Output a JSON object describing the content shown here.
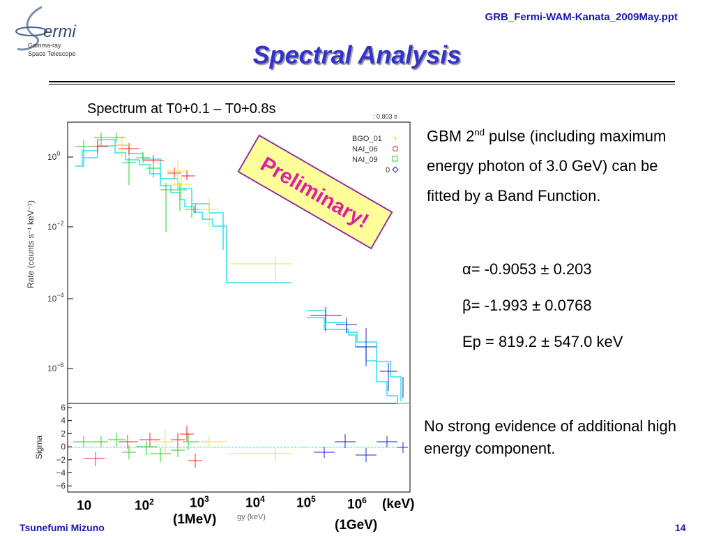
{
  "header": {
    "file": "GRB_Fermi-WAM-Kanata_2009May.ppt",
    "title": "Spectral Analysis",
    "logo": {
      "name": "ermi",
      "line1": "Gamma-ray",
      "line2": "Space Telescope"
    }
  },
  "plot": {
    "caption": "Spectrum at T0+0.1 – T0+0.8s",
    "corner": ": 0.803 s",
    "ylabel": "Rate (counts s⁻¹ keV⁻¹)",
    "yticks": [
      {
        "base": "10",
        "exp": "0"
      },
      {
        "base": "10",
        "exp": "−2"
      },
      {
        "base": "10",
        "exp": "−4"
      },
      {
        "base": "10",
        "exp": "−6"
      }
    ],
    "legend": [
      "BGO_01",
      "NAI_06",
      "NAI_09",
      "0"
    ],
    "sigma_label": "Sigma",
    "sigma_ticks": [
      "6",
      "4",
      "2",
      "0",
      "−2",
      "−4",
      "−6"
    ],
    "xaxis_hidden": "gy (keV)",
    "stamp": "Preliminary!",
    "xticks": [
      {
        "base": "10",
        "exp": ""
      },
      {
        "base": "10",
        "exp": "2"
      },
      {
        "base": "10",
        "exp": "3"
      },
      {
        "base": "10",
        "exp": "4"
      },
      {
        "base": "10",
        "exp": "5"
      },
      {
        "base": "10",
        "exp": "6"
      }
    ],
    "xunit": "(keV)",
    "mev": "(1MeV)",
    "gev": "(1GeV)"
  },
  "text": {
    "pulse": {
      "a": "GBM 2",
      "sup": "nd",
      "b": " pulse (including maximum energy photon of 3.0 GeV) can be fitted by a Band Function."
    },
    "params": [
      "α= -0.9053 ± 0.203",
      "β= -1.993 ± 0.0768",
      "Ep = 819.2 ± 547.0 keV"
    ],
    "note": "No strong evidence of additional high energy component."
  },
  "footer": {
    "author": "Tsunefumi Mizuno",
    "page": "14"
  }
}
